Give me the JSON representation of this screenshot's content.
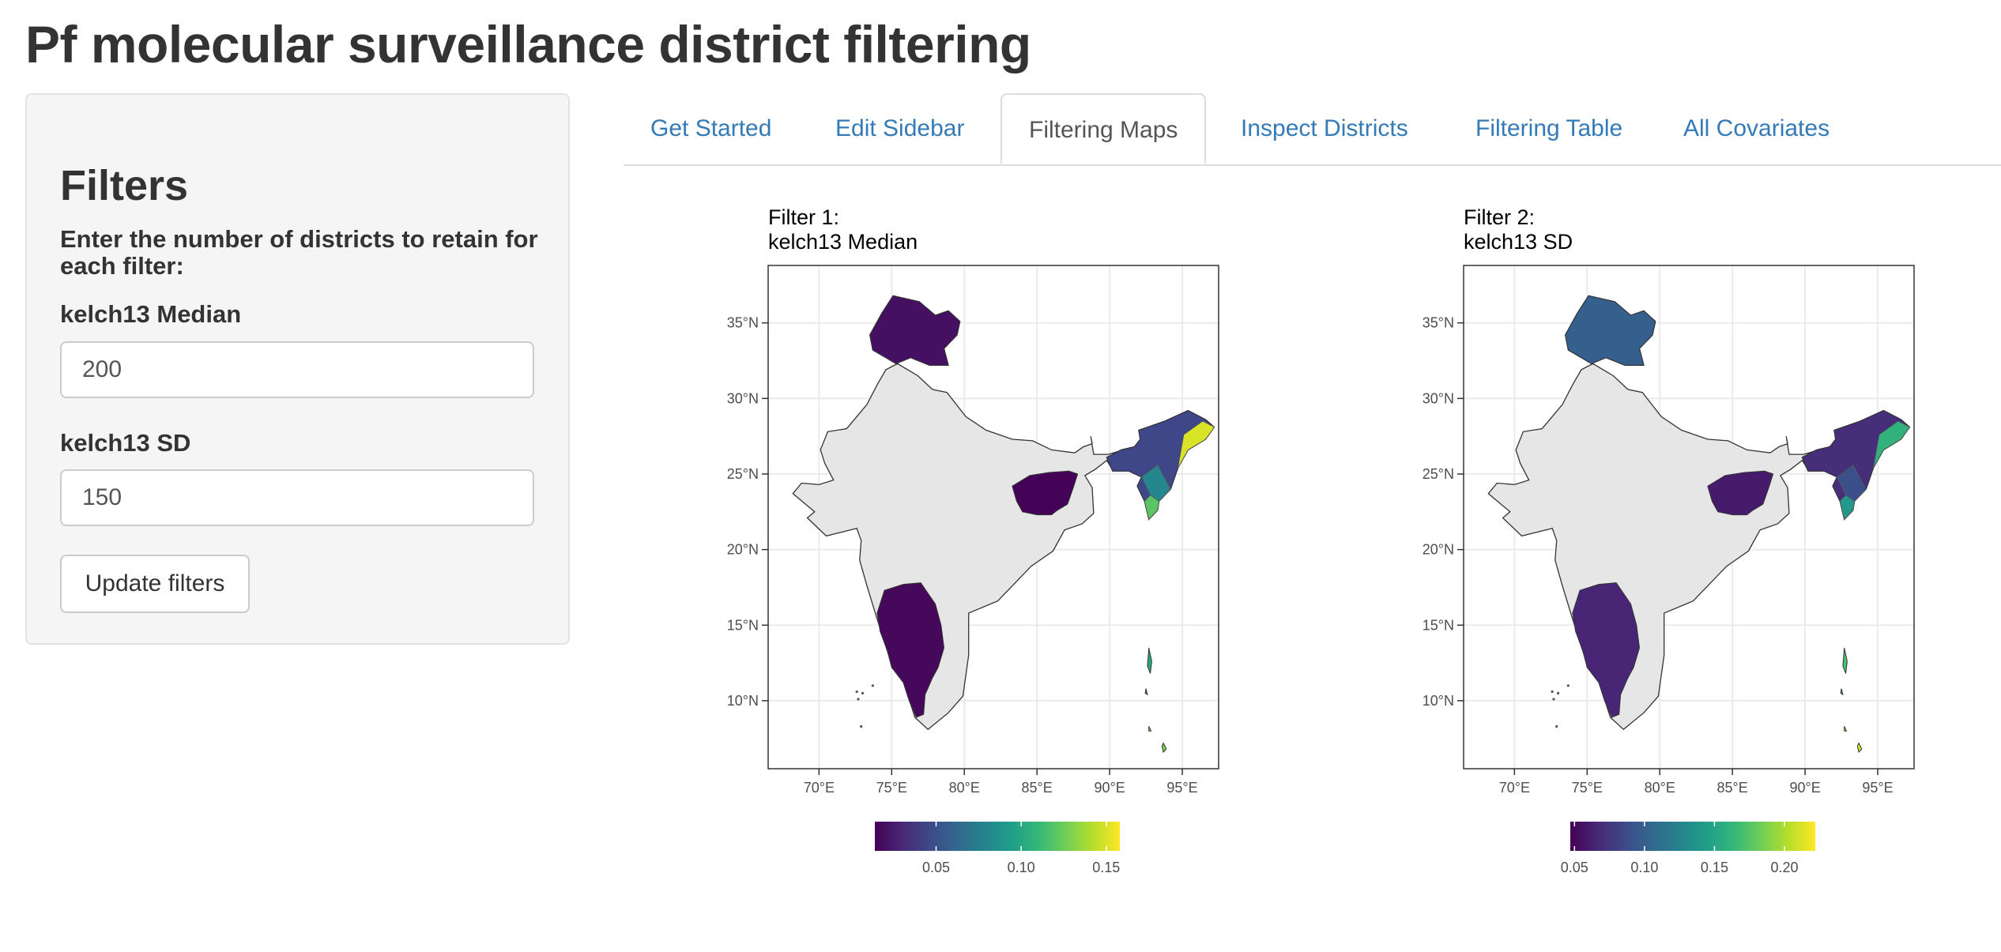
{
  "app": {
    "title": "Pf molecular surveillance district filtering"
  },
  "sidebar": {
    "heading": "Filters",
    "instructions": "Enter the number of districts to retain for each filter:",
    "fields": [
      {
        "label": "kelch13 Median",
        "value": "200"
      },
      {
        "label": "kelch13 SD",
        "value": "150"
      }
    ],
    "update_button": "Update filters"
  },
  "tabs": [
    {
      "label": "Get Started",
      "active": false
    },
    {
      "label": "Edit Sidebar",
      "active": false
    },
    {
      "label": "Filtering Maps",
      "active": true
    },
    {
      "label": "Inspect Districts",
      "active": false
    },
    {
      "label": "Filtering Table",
      "active": false
    },
    {
      "label": "All Covariates",
      "active": false
    }
  ],
  "colors": {
    "link": "#337ab7",
    "map_fill": "#e6e6e6",
    "viridis_low": "#440154",
    "viridis_high": "#fde725"
  },
  "chart_data": [
    {
      "type": "map",
      "title_line1": "Filter 1:",
      "title_line2": "kelch13 Median",
      "x_ticks": [
        "70°E",
        "75°E",
        "80°E",
        "85°E",
        "90°E",
        "95°E"
      ],
      "y_ticks": [
        "35°N",
        "30°N",
        "25°N",
        "20°N",
        "15°N",
        "10°N"
      ],
      "xlim": [
        66.5,
        97.5
      ],
      "ylim": [
        5.5,
        38.8
      ],
      "colorbar": {
        "min": 0.014,
        "max": 0.158,
        "ticks": [
          0.05,
          0.1,
          0.15
        ],
        "tick_labels": [
          "0.05",
          "0.10",
          "0.15"
        ]
      },
      "colored_regions": [
        "Jammu & Kashmir",
        "Jharkhand",
        "Northeast",
        "Karnataka",
        "Kerala",
        "Andaman & Nicobar"
      ]
    },
    {
      "type": "map",
      "title_line1": "Filter 2:",
      "title_line2": "kelch13 SD",
      "x_ticks": [
        "70°E",
        "75°E",
        "80°E",
        "85°E",
        "90°E",
        "95°E"
      ],
      "y_ticks": [
        "35°N",
        "30°N",
        "25°N",
        "20°N",
        "15°N",
        "10°N"
      ],
      "xlim": [
        66.5,
        97.5
      ],
      "ylim": [
        5.5,
        38.8
      ],
      "colorbar": {
        "min": 0.047,
        "max": 0.222,
        "ticks": [
          0.05,
          0.1,
          0.15,
          0.2
        ],
        "tick_labels": [
          "0.05",
          "0.10",
          "0.15",
          "0.20"
        ]
      },
      "colored_regions": [
        "Jammu & Kashmir",
        "Jharkhand",
        "Northeast",
        "Karnataka",
        "Kerala",
        "Andaman & Nicobar"
      ]
    }
  ]
}
